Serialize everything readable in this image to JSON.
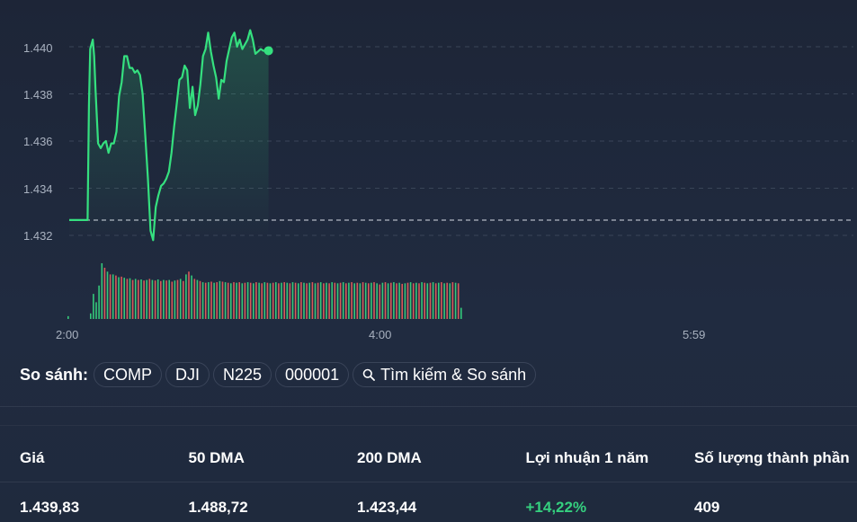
{
  "chart_data": {
    "type": "line",
    "y_ticks": [
      "1.440",
      "1.438",
      "1.436",
      "1.434",
      "1.432"
    ],
    "y_tick_values": [
      1440,
      1438,
      1436,
      1434,
      1432
    ],
    "x_ticks": [
      "2:00",
      "4:00",
      "5:59"
    ],
    "ylim": [
      1431.6,
      1440.9
    ],
    "previous_close": 1432.65,
    "grid": true,
    "line_color": "#35e07f",
    "volume_up_color": "#35c97b",
    "volume_down_color": "#d95a5a",
    "series": [
      {
        "x_minutes": [
          0,
          14,
          15,
          16,
          18,
          19,
          20,
          22,
          24,
          26,
          28,
          30,
          32,
          34,
          36,
          38,
          40,
          42,
          44,
          46,
          48,
          50,
          52,
          54,
          56,
          58,
          60,
          62,
          64,
          66,
          68,
          70,
          72,
          74,
          76,
          78,
          80,
          82,
          84,
          86,
          88,
          90,
          92,
          94,
          96,
          98,
          100,
          102,
          104,
          106,
          108,
          110,
          112,
          114,
          116,
          118,
          120,
          122,
          124,
          126,
          128,
          130,
          132,
          134,
          136,
          138,
          140,
          142,
          144,
          146,
          148,
          150,
          152
        ],
        "values": [
          1432.65,
          1432.65,
          1437.5,
          1439.9,
          1440.3,
          1439.6,
          1438.2,
          1435.9,
          1435.7,
          1435.9,
          1436.0,
          1435.5,
          1435.9,
          1435.9,
          1436.4,
          1437.9,
          1438.5,
          1439.6,
          1439.6,
          1439.1,
          1439.1,
          1438.9,
          1439.0,
          1438.8,
          1438.0,
          1436.2,
          1434.4,
          1432.2,
          1431.8,
          1433.2,
          1433.7,
          1434.1,
          1434.2,
          1434.4,
          1434.7,
          1435.5,
          1436.6,
          1437.6,
          1438.6,
          1438.7,
          1439.2,
          1439.0,
          1437.4,
          1438.3,
          1437.1,
          1437.5,
          1438.4,
          1439.6,
          1439.9,
          1440.6,
          1439.8,
          1439.2,
          1438.7,
          1437.8,
          1438.6,
          1438.5,
          1439.4,
          1439.9,
          1440.4,
          1440.6,
          1440.0,
          1440.3,
          1439.9,
          1440.1,
          1440.3,
          1440.7,
          1440.3,
          1439.7,
          1439.8,
          1439.9,
          1439.83,
          1439.83,
          1439.83
        ]
      }
    ],
    "volumes": [
      {
        "v": 0.05,
        "up": true
      },
      {
        "v": 0.0,
        "up": true
      },
      {
        "v": 0.0,
        "up": true
      },
      {
        "v": 0.0,
        "up": true
      },
      {
        "v": 0.0,
        "up": true
      },
      {
        "v": 0.0,
        "up": true
      },
      {
        "v": 0.0,
        "up": true
      },
      {
        "v": 0.0,
        "up": true
      },
      {
        "v": 0.1,
        "up": true
      },
      {
        "v": 0.45,
        "up": true
      },
      {
        "v": 0.3,
        "up": true
      },
      {
        "v": 0.6,
        "up": true
      },
      {
        "v": 1.0,
        "up": true
      },
      {
        "v": 0.92,
        "up": false
      },
      {
        "v": 0.85,
        "up": true
      },
      {
        "v": 0.8,
        "up": false
      },
      {
        "v": 0.8,
        "up": true
      },
      {
        "v": 0.78,
        "up": false
      },
      {
        "v": 0.75,
        "up": true
      },
      {
        "v": 0.76,
        "up": false
      },
      {
        "v": 0.74,
        "up": true
      },
      {
        "v": 0.72,
        "up": false
      },
      {
        "v": 0.73,
        "up": true
      },
      {
        "v": 0.7,
        "up": false
      },
      {
        "v": 0.72,
        "up": true
      },
      {
        "v": 0.7,
        "up": false
      },
      {
        "v": 0.71,
        "up": true
      },
      {
        "v": 0.69,
        "up": false
      },
      {
        "v": 0.7,
        "up": true
      },
      {
        "v": 0.72,
        "up": false
      },
      {
        "v": 0.7,
        "up": true
      },
      {
        "v": 0.69,
        "up": false
      },
      {
        "v": 0.71,
        "up": true
      },
      {
        "v": 0.68,
        "up": false
      },
      {
        "v": 0.7,
        "up": true
      },
      {
        "v": 0.69,
        "up": false
      },
      {
        "v": 0.7,
        "up": true
      },
      {
        "v": 0.67,
        "up": false
      },
      {
        "v": 0.69,
        "up": true
      },
      {
        "v": 0.7,
        "up": false
      },
      {
        "v": 0.72,
        "up": true
      },
      {
        "v": 0.68,
        "up": false
      },
      {
        "v": 0.8,
        "up": true
      },
      {
        "v": 0.85,
        "up": false
      },
      {
        "v": 0.78,
        "up": true
      },
      {
        "v": 0.72,
        "up": false
      },
      {
        "v": 0.7,
        "up": true
      },
      {
        "v": 0.68,
        "up": false
      },
      {
        "v": 0.66,
        "up": true
      },
      {
        "v": 0.65,
        "up": false
      },
      {
        "v": 0.66,
        "up": true
      },
      {
        "v": 0.67,
        "up": false
      },
      {
        "v": 0.65,
        "up": true
      },
      {
        "v": 0.66,
        "up": false
      },
      {
        "v": 0.68,
        "up": true
      },
      {
        "v": 0.67,
        "up": false
      },
      {
        "v": 0.66,
        "up": true
      },
      {
        "v": 0.65,
        "up": false
      },
      {
        "v": 0.64,
        "up": true
      },
      {
        "v": 0.66,
        "up": false
      },
      {
        "v": 0.65,
        "up": true
      },
      {
        "v": 0.66,
        "up": false
      },
      {
        "v": 0.64,
        "up": true
      },
      {
        "v": 0.65,
        "up": false
      },
      {
        "v": 0.66,
        "up": true
      },
      {
        "v": 0.65,
        "up": false
      },
      {
        "v": 0.64,
        "up": true
      },
      {
        "v": 0.66,
        "up": false
      },
      {
        "v": 0.65,
        "up": true
      },
      {
        "v": 0.64,
        "up": false
      },
      {
        "v": 0.66,
        "up": true
      },
      {
        "v": 0.65,
        "up": false
      },
      {
        "v": 0.64,
        "up": true
      },
      {
        "v": 0.65,
        "up": false
      },
      {
        "v": 0.66,
        "up": true
      },
      {
        "v": 0.64,
        "up": false
      },
      {
        "v": 0.65,
        "up": true
      },
      {
        "v": 0.66,
        "up": false
      },
      {
        "v": 0.65,
        "up": true
      },
      {
        "v": 0.64,
        "up": false
      },
      {
        "v": 0.66,
        "up": true
      },
      {
        "v": 0.65,
        "up": false
      },
      {
        "v": 0.64,
        "up": true
      },
      {
        "v": 0.66,
        "up": false
      },
      {
        "v": 0.65,
        "up": true
      },
      {
        "v": 0.64,
        "up": false
      },
      {
        "v": 0.65,
        "up": true
      },
      {
        "v": 0.66,
        "up": false
      },
      {
        "v": 0.64,
        "up": true
      },
      {
        "v": 0.65,
        "up": false
      },
      {
        "v": 0.66,
        "up": true
      },
      {
        "v": 0.64,
        "up": false
      },
      {
        "v": 0.65,
        "up": true
      },
      {
        "v": 0.64,
        "up": false
      },
      {
        "v": 0.66,
        "up": true
      },
      {
        "v": 0.65,
        "up": false
      },
      {
        "v": 0.64,
        "up": true
      },
      {
        "v": 0.65,
        "up": false
      },
      {
        "v": 0.66,
        "up": true
      },
      {
        "v": 0.64,
        "up": false
      },
      {
        "v": 0.65,
        "up": true
      },
      {
        "v": 0.66,
        "up": false
      },
      {
        "v": 0.64,
        "up": true
      },
      {
        "v": 0.65,
        "up": false
      },
      {
        "v": 0.64,
        "up": true
      },
      {
        "v": 0.66,
        "up": false
      },
      {
        "v": 0.65,
        "up": true
      },
      {
        "v": 0.64,
        "up": false
      },
      {
        "v": 0.65,
        "up": true
      },
      {
        "v": 0.66,
        "up": false
      },
      {
        "v": 0.64,
        "up": true
      },
      {
        "v": 0.62,
        "up": false
      },
      {
        "v": 0.65,
        "up": true
      },
      {
        "v": 0.66,
        "up": false
      },
      {
        "v": 0.64,
        "up": true
      },
      {
        "v": 0.65,
        "up": false
      },
      {
        "v": 0.66,
        "up": true
      },
      {
        "v": 0.64,
        "up": false
      },
      {
        "v": 0.65,
        "up": true
      },
      {
        "v": 0.63,
        "up": false
      },
      {
        "v": 0.64,
        "up": true
      },
      {
        "v": 0.65,
        "up": false
      },
      {
        "v": 0.66,
        "up": true
      },
      {
        "v": 0.64,
        "up": false
      },
      {
        "v": 0.65,
        "up": true
      },
      {
        "v": 0.64,
        "up": false
      },
      {
        "v": 0.66,
        "up": true
      },
      {
        "v": 0.65,
        "up": false
      },
      {
        "v": 0.64,
        "up": true
      },
      {
        "v": 0.65,
        "up": false
      },
      {
        "v": 0.66,
        "up": true
      },
      {
        "v": 0.64,
        "up": false
      },
      {
        "v": 0.65,
        "up": true
      },
      {
        "v": 0.66,
        "up": false
      },
      {
        "v": 0.64,
        "up": true
      },
      {
        "v": 0.65,
        "up": false
      },
      {
        "v": 0.64,
        "up": true
      },
      {
        "v": 0.66,
        "up": false
      },
      {
        "v": 0.65,
        "up": true
      },
      {
        "v": 0.64,
        "up": false
      },
      {
        "v": 0.2,
        "up": true
      }
    ]
  },
  "compare": {
    "label": "So sánh:",
    "chips": [
      "COMP",
      "DJI",
      "N225",
      "000001"
    ],
    "search_label": "Tìm kiếm & So sánh"
  },
  "stats": {
    "headers": {
      "price": "Giá",
      "dma50": "50 DMA",
      "dma200": "200 DMA",
      "return_1y": "Lợi nhuận 1 năm",
      "components": "Số lượng thành phần"
    },
    "values": {
      "price": "1.439,83",
      "dma50": "1.488,72",
      "dma200": "1.423,44",
      "return_1y": "+14,22%",
      "components": "409"
    }
  }
}
